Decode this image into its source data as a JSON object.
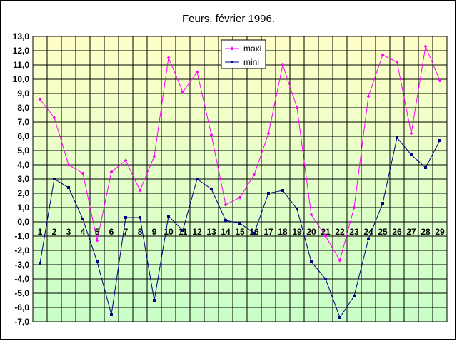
{
  "chart_data": {
    "type": "line",
    "title": "Feurs, février 1996.",
    "xlabel": "",
    "ylabel": "",
    "categories": [
      "1",
      "2",
      "3",
      "4",
      "5",
      "6",
      "7",
      "8",
      "9",
      "10",
      "11",
      "12",
      "13",
      "14",
      "15",
      "16",
      "17",
      "18",
      "19",
      "20",
      "21",
      "22",
      "23",
      "24",
      "25",
      "26",
      "27",
      "28",
      "29"
    ],
    "ylim": [
      -7.0,
      13.0
    ],
    "ystep": 1.0,
    "ytick_labels": [
      "13,0",
      "12,0",
      "11,0",
      "10,0",
      "9,0",
      "8,0",
      "7,0",
      "6,0",
      "5,0",
      "4,0",
      "3,0",
      "2,0",
      "1,0",
      "0,0",
      "-1,0",
      "-2,0",
      "-3,0",
      "-4,0",
      "-5,0",
      "-6,0",
      "-7,0"
    ],
    "grid": true,
    "legend_position": "top-center",
    "series": [
      {
        "name": "maxi",
        "color": "#ff00ff",
        "marker": "diamond",
        "values": [
          8.6,
          7.3,
          4.0,
          3.4,
          -1.3,
          3.5,
          4.3,
          2.2,
          4.6,
          11.5,
          9.1,
          10.5,
          6.1,
          1.2,
          1.7,
          3.3,
          6.2,
          11.0,
          8.0,
          0.5,
          -1.0,
          -2.7,
          1.0,
          8.8,
          11.7,
          11.2,
          6.2,
          12.3,
          9.9
        ]
      },
      {
        "name": "mini",
        "color": "#000080",
        "marker": "square",
        "values": [
          -2.9,
          3.0,
          2.4,
          0.2,
          -2.8,
          -6.5,
          0.3,
          0.3,
          -5.5,
          0.4,
          -0.6,
          3.0,
          2.3,
          0.1,
          -0.1,
          -0.8,
          2.0,
          2.2,
          0.9,
          -2.8,
          -4.0,
          -6.7,
          -5.2,
          -1.2,
          1.3,
          5.9,
          4.7,
          3.8,
          5.7
        ]
      }
    ]
  }
}
